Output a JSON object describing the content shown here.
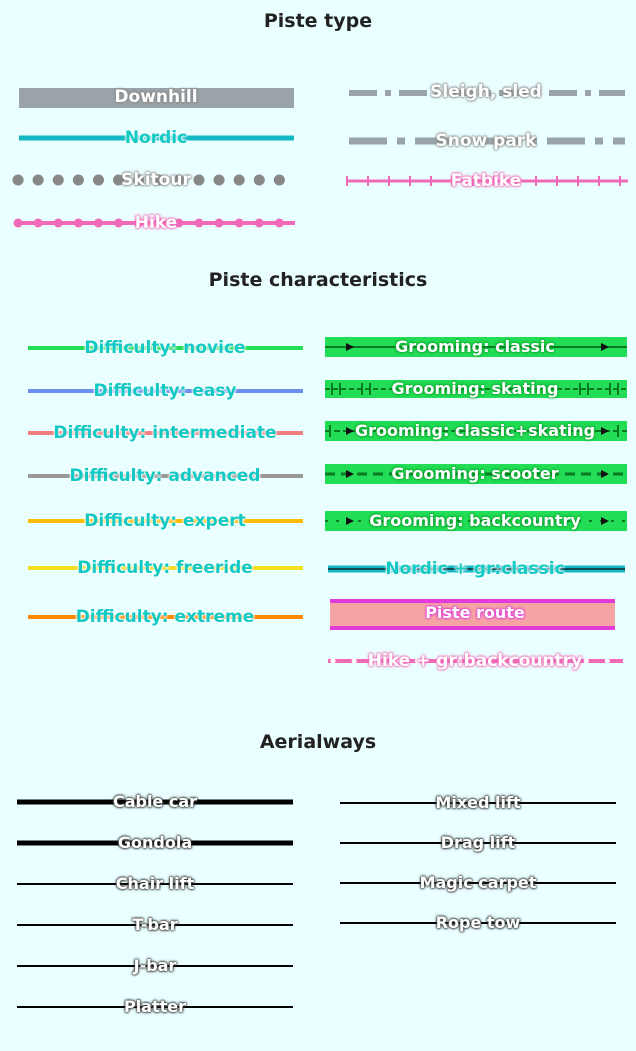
{
  "sections": {
    "piste_type": "Piste type",
    "piste_characteristics": "Piste characteristics",
    "aerialways": "Aerialways"
  },
  "piste_type": {
    "left": [
      {
        "label": "Downhill",
        "color": "#9aa3a8"
      },
      {
        "label": "Nordic",
        "color": "#12b8c4"
      },
      {
        "label": "Skitour",
        "color": "#888888"
      },
      {
        "label": "Hike",
        "color": "#f06ab8"
      }
    ],
    "right": [
      {
        "label": "Sleigh, sled",
        "color": "#9aa3a8"
      },
      {
        "label": "Snow park",
        "color": "#9aa3a8"
      },
      {
        "label": "Fatbike",
        "color": "#f06ab8"
      }
    ]
  },
  "piste_characteristics": {
    "difficulty": [
      {
        "label": "Difficulty: novice",
        "color": "#22dd55"
      },
      {
        "label": "Difficulty: easy",
        "color": "#6a8ff0"
      },
      {
        "label": "Difficulty: intermediate",
        "color": "#f08080"
      },
      {
        "label": "Difficulty: advanced",
        "color": "#999999"
      },
      {
        "label": "Difficulty: expert",
        "color": "#ffbb00"
      },
      {
        "label": "Difficulty: freeride",
        "color": "#f5dd22"
      },
      {
        "label": "Difficulty: extreme",
        "color": "#ff8800"
      }
    ],
    "grooming": [
      {
        "label": "Grooming: classic",
        "color": "#22dd55"
      },
      {
        "label": "Grooming: skating",
        "color": "#22dd55"
      },
      {
        "label": "Grooming: classic+skating",
        "color": "#22dd55"
      },
      {
        "label": "Grooming: scooter",
        "color": "#22dd55"
      },
      {
        "label": "Grooming: backcountry",
        "color": "#22dd55"
      },
      {
        "label": "Nordic + gr:classic",
        "color": "#12b8c4"
      },
      {
        "label": "Piste route",
        "color": "#f5a3a3"
      },
      {
        "label": "Hike + gr:backcountry",
        "color": "#f06ab8"
      }
    ]
  },
  "aerialways": {
    "left": [
      {
        "label": "Cable car"
      },
      {
        "label": "Gondola"
      },
      {
        "label": "Chair lift"
      },
      {
        "label": "T-bar"
      },
      {
        "label": "J-bar"
      },
      {
        "label": "Platter"
      }
    ],
    "right": [
      {
        "label": "Mixed lift"
      },
      {
        "label": "Drag lift"
      },
      {
        "label": "Magic carpet"
      },
      {
        "label": "Rope tow"
      }
    ]
  }
}
